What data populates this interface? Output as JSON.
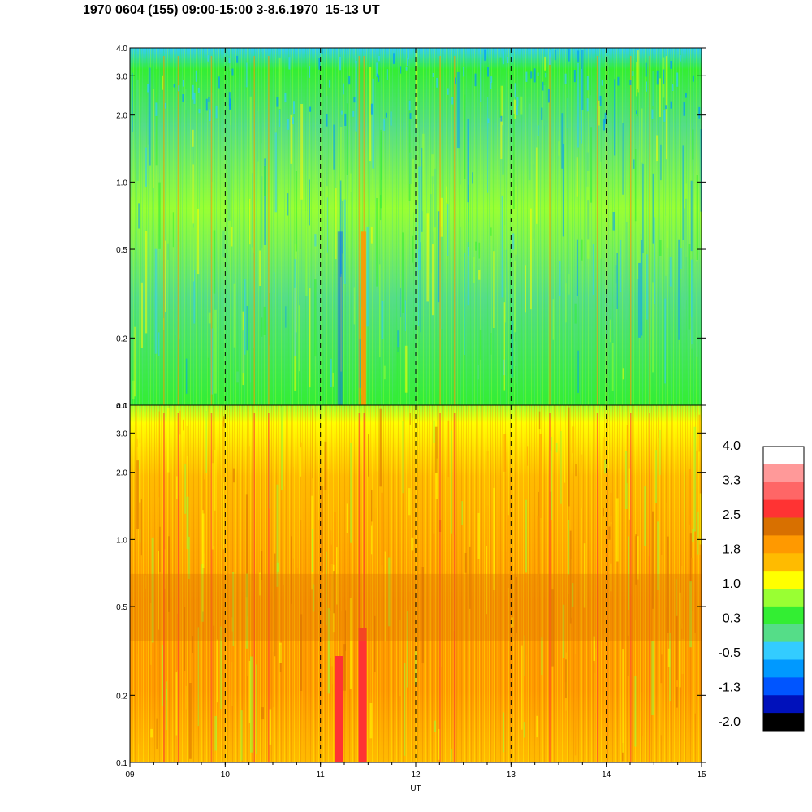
{
  "title": "1970 0604 (155) 09:00-15:00 3-8.6.1970  15-13 UT",
  "chart_data": [
    {
      "type": "heatmap",
      "panel": "upper",
      "xlim": [
        9,
        15
      ],
      "ylim": [
        0.1,
        4.0
      ],
      "yscale": "log",
      "y_ticks": [
        "0.1",
        "0.2",
        "0.5",
        "1.0",
        "2.0",
        "3.0",
        "4.0"
      ],
      "y_tick_values": [
        0.1,
        0.2,
        0.5,
        1.0,
        2.0,
        3.0,
        4.0
      ],
      "dominant_level": 0.3,
      "vertical_dashed_lines_at": [
        10,
        11,
        12,
        13,
        14
      ]
    },
    {
      "type": "heatmap",
      "panel": "lower",
      "xlim": [
        9,
        15
      ],
      "ylim": [
        0.1,
        4.0
      ],
      "yscale": "log",
      "y_ticks": [
        "0.1",
        "0.2",
        "0.5",
        "1.0",
        "2.0",
        "3.0",
        "4.0"
      ],
      "y_tick_values": [
        0.1,
        0.2,
        0.5,
        1.0,
        2.0,
        3.0,
        4.0
      ],
      "dominant_level": 1.8,
      "vertical_dashed_lines_at": [
        10,
        11,
        12,
        13,
        14
      ]
    }
  ],
  "x_axis": {
    "ticks": [
      "09",
      "10",
      "11",
      "12",
      "13",
      "14",
      "15"
    ],
    "tick_values": [
      9,
      10,
      11,
      12,
      13,
      14,
      15
    ],
    "label": "UT"
  },
  "colorbar": {
    "labels": [
      "4.0",
      "3.3",
      "2.5",
      "1.8",
      "1.0",
      "0.3",
      "-0.5",
      "-1.3",
      "-2.0"
    ],
    "colors": [
      "#ffffff",
      "#ff9999",
      "#ff6666",
      "#ff3333",
      "#d87000",
      "#ff9900",
      "#ffbb00",
      "#ffff00",
      "#99ff33",
      "#33ee33",
      "#55dd88",
      "#33ccff",
      "#0099ff",
      "#0055ff",
      "#0011bb",
      "#000000"
    ]
  }
}
